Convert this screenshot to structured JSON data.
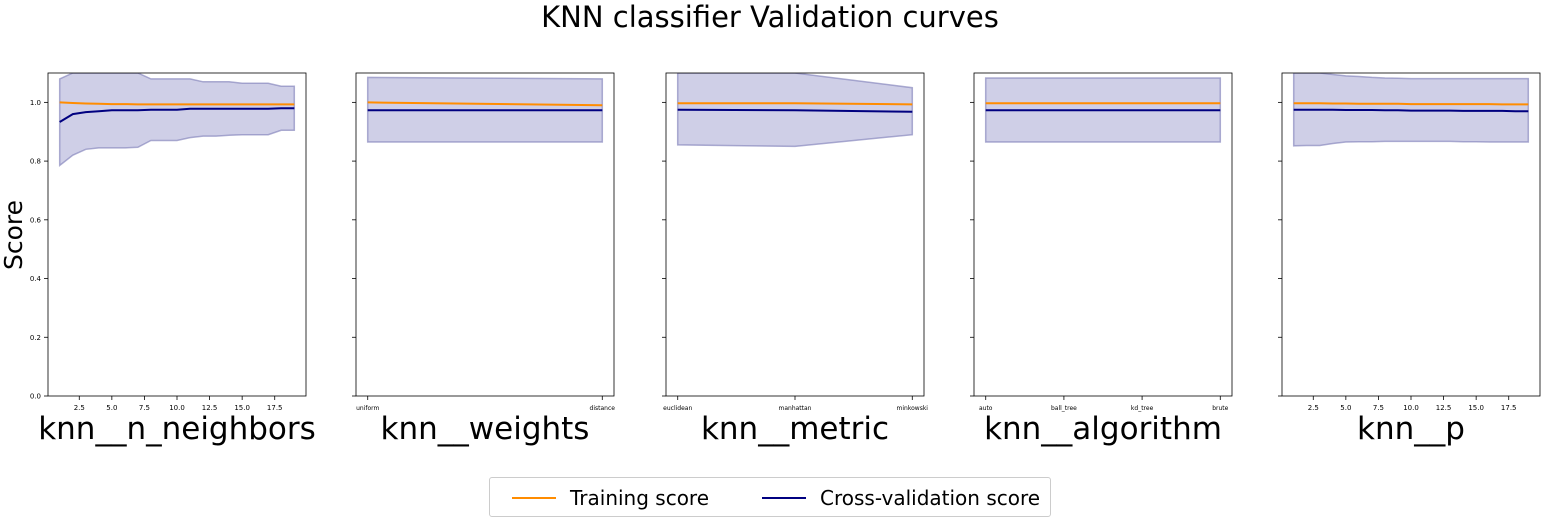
{
  "title": "KNN classifier Validation curves",
  "ylabel": "Score",
  "yticks": [
    "0.0",
    "0.2",
    "0.4",
    "0.6",
    "0.8",
    "1.0"
  ],
  "colors": {
    "training": "#ff8c00",
    "cv": "#000080",
    "band": "#9f9fd0",
    "band_edge": "#7a7ab5"
  },
  "legend": {
    "training_label": "Training score",
    "cv_label": "Cross-validation score"
  },
  "chart_data": [
    {
      "type": "line",
      "xlabel": "knn__n_neighbors",
      "numeric_x": true,
      "x": [
        1,
        2,
        3,
        4,
        5,
        6,
        7,
        8,
        9,
        10,
        11,
        12,
        13,
        14,
        15,
        16,
        17,
        18,
        19
      ],
      "xticks": [
        2.5,
        5.0,
        7.5,
        10.0,
        12.5,
        15.0,
        17.5
      ],
      "xtick_labels": [
        "2.5",
        "5.0",
        "7.5",
        "10.0",
        "12.5",
        "15.0",
        "17.5"
      ],
      "ylim": [
        0.0,
        1.1
      ],
      "series": [
        {
          "name": "Training score",
          "values": [
            1.0,
            0.998,
            0.996,
            0.995,
            0.994,
            0.994,
            0.993,
            0.993,
            0.993,
            0.993,
            0.993,
            0.993,
            0.993,
            0.993,
            0.993,
            0.993,
            0.993,
            0.993,
            0.993
          ]
        },
        {
          "name": "Cross-validation score",
          "values": [
            0.933,
            0.96,
            0.967,
            0.97,
            0.973,
            0.973,
            0.973,
            0.975,
            0.975,
            0.975,
            0.978,
            0.978,
            0.978,
            0.978,
            0.978,
            0.978,
            0.978,
            0.98,
            0.98
          ],
          "band_upper": [
            1.08,
            1.1,
            1.1,
            1.1,
            1.1,
            1.1,
            1.1,
            1.08,
            1.08,
            1.08,
            1.08,
            1.07,
            1.07,
            1.07,
            1.065,
            1.065,
            1.065,
            1.055,
            1.055
          ],
          "band_lower": [
            0.785,
            0.82,
            0.84,
            0.845,
            0.845,
            0.845,
            0.847,
            0.87,
            0.87,
            0.87,
            0.88,
            0.885,
            0.885,
            0.888,
            0.89,
            0.89,
            0.89,
            0.905,
            0.905
          ]
        }
      ]
    },
    {
      "type": "line",
      "xlabel": "knn__weights",
      "numeric_x": false,
      "categories": [
        "uniform",
        "distance"
      ],
      "ylim": [
        0.0,
        1.1
      ],
      "series": [
        {
          "name": "Training score",
          "values": [
            1.0,
            0.99
          ]
        },
        {
          "name": "Cross-validation score",
          "values": [
            0.973,
            0.973
          ],
          "band_upper": [
            1.085,
            1.08
          ],
          "band_lower": [
            0.865,
            0.865
          ]
        }
      ]
    },
    {
      "type": "line",
      "xlabel": "knn__metric",
      "numeric_x": false,
      "categories": [
        "euclidean",
        "manhattan",
        "minkowski"
      ],
      "ylim": [
        0.0,
        1.1
      ],
      "series": [
        {
          "name": "Training score",
          "values": [
            0.997,
            0.997,
            0.993
          ]
        },
        {
          "name": "Cross-validation score",
          "values": [
            0.975,
            0.973,
            0.968
          ],
          "band_upper": [
            1.1,
            1.1,
            1.05
          ],
          "band_lower": [
            0.855,
            0.85,
            0.89
          ]
        }
      ]
    },
    {
      "type": "line",
      "xlabel": "knn__algorithm",
      "numeric_x": false,
      "categories": [
        "auto",
        "ball_tree",
        "kd_tree",
        "brute"
      ],
      "ylim": [
        0.0,
        1.1
      ],
      "series": [
        {
          "name": "Training score",
          "values": [
            0.997,
            0.997,
            0.997,
            0.997
          ]
        },
        {
          "name": "Cross-validation score",
          "values": [
            0.973,
            0.973,
            0.973,
            0.973
          ],
          "band_upper": [
            1.083,
            1.083,
            1.083,
            1.083
          ],
          "band_lower": [
            0.865,
            0.865,
            0.865,
            0.865
          ]
        }
      ]
    },
    {
      "type": "line",
      "xlabel": "knn__p",
      "numeric_x": true,
      "x": [
        1,
        2,
        3,
        4,
        5,
        6,
        7,
        8,
        9,
        10,
        11,
        12,
        13,
        14,
        15,
        16,
        17,
        18,
        19
      ],
      "xticks": [
        2.5,
        5.0,
        7.5,
        10.0,
        12.5,
        15.0,
        17.5
      ],
      "xtick_labels": [
        "2.5",
        "5.0",
        "7.5",
        "10.0",
        "12.5",
        "15.0",
        "17.5"
      ],
      "ylim": [
        0.0,
        1.1
      ],
      "series": [
        {
          "name": "Training score",
          "values": [
            0.997,
            0.997,
            0.997,
            0.996,
            0.996,
            0.995,
            0.995,
            0.995,
            0.995,
            0.994,
            0.994,
            0.994,
            0.994,
            0.994,
            0.994,
            0.994,
            0.993,
            0.993,
            0.993
          ]
        },
        {
          "name": "Cross-validation score",
          "values": [
            0.975,
            0.975,
            0.975,
            0.975,
            0.974,
            0.974,
            0.974,
            0.973,
            0.973,
            0.972,
            0.972,
            0.972,
            0.972,
            0.971,
            0.971,
            0.971,
            0.971,
            0.97,
            0.97
          ],
          "band_upper": [
            1.1,
            1.1,
            1.1,
            1.095,
            1.09,
            1.088,
            1.085,
            1.083,
            1.082,
            1.081,
            1.081,
            1.081,
            1.081,
            1.081,
            1.081,
            1.081,
            1.081,
            1.081,
            1.081
          ],
          "band_lower": [
            0.852,
            0.853,
            0.853,
            0.86,
            0.865,
            0.866,
            0.866,
            0.867,
            0.867,
            0.867,
            0.867,
            0.867,
            0.867,
            0.866,
            0.866,
            0.865,
            0.865,
            0.865,
            0.865
          ]
        }
      ]
    }
  ]
}
